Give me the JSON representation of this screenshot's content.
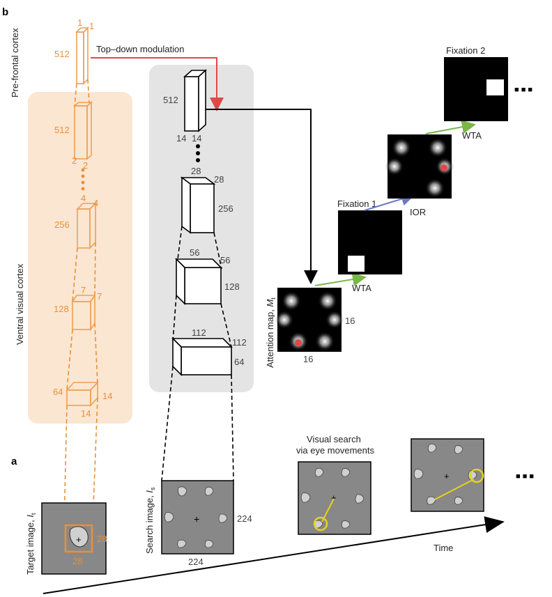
{
  "panel_labels": {
    "a": "a",
    "b": "b"
  },
  "regions": {
    "prefrontal": "Pre-frontal cortex",
    "ventral": "Ventral visual cortex"
  },
  "arrows": {
    "top_down": "Top–down modulation",
    "time": "Time"
  },
  "target_net": {
    "top_w1": "1",
    "top_w2": "1",
    "top_c": "512",
    "l2_c": "512",
    "l2_w1": "2",
    "l2_w2": "2",
    "l3_w1": "4",
    "l3_w2": "4",
    "l3_c": "256",
    "l4_w1": "7",
    "l4_w2": "7",
    "l4_c": "128",
    "l5_c": "64",
    "l5_w1": "14",
    "l5_w2": "14"
  },
  "search_net": {
    "l1_c": "512",
    "l1_w1": "14",
    "l1_w2": "14",
    "l2_w1": "28",
    "l2_w2": "28",
    "l2_c": "256",
    "l3_w1": "56",
    "l3_w2": "56",
    "l3_c": "128",
    "l4_w1": "112",
    "l4_w2": "112",
    "l4_c": "64"
  },
  "attention": {
    "label": "Attention map, ",
    "symbol": "M",
    "subscript": "t",
    "w": "16",
    "h": "16"
  },
  "fixations": {
    "f1": "Fixation 1",
    "f2": "Fixation 2",
    "wta1": "WTA",
    "wta2": "WTA",
    "ior": "IOR"
  },
  "target_image": {
    "label": "Target image, ",
    "symbol": "I",
    "subscript": "t",
    "w": "28",
    "h": "28"
  },
  "search_image": {
    "label": "Search image, ",
    "symbol": "I",
    "subscript": "s",
    "w": "224",
    "h": "224"
  },
  "visual_search": {
    "line1": "Visual search",
    "line2": "via eye movements"
  },
  "ellipsis": "■ ■ ■",
  "colors": {
    "orange": "#e8903a",
    "red": "#e04848",
    "green": "#7ab648",
    "blue": "#6a78c8",
    "yellow": "#e6d21e",
    "panel_grey": "#e4e4e4",
    "panel_peach": "#fbe6d2"
  }
}
